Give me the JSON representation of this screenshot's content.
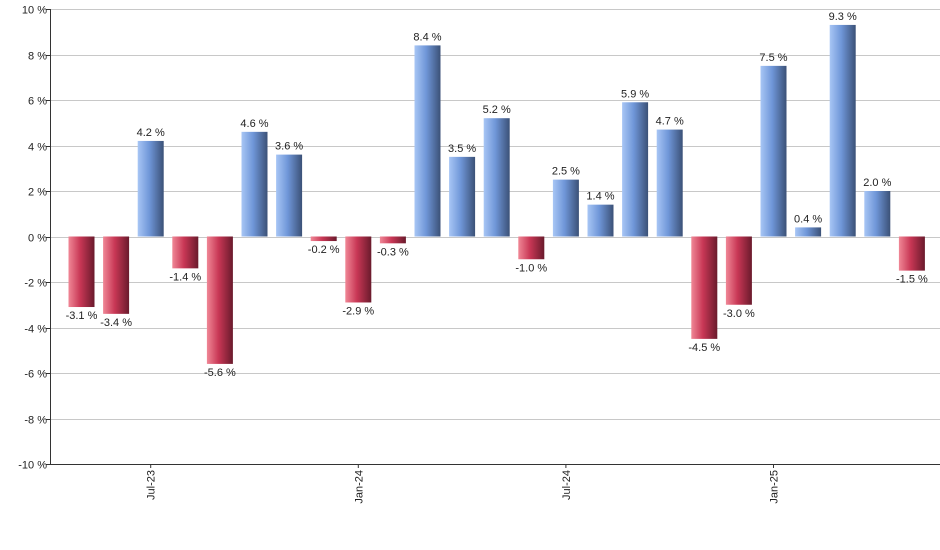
{
  "chart_data": {
    "type": "bar",
    "title": "",
    "xlabel": "",
    "ylabel": "",
    "ylim": [
      -10,
      10
    ],
    "y_ticks": [
      10,
      8,
      6,
      4,
      2,
      0,
      -2,
      -4,
      -6,
      -8,
      -10
    ],
    "y_tick_suffix": " %",
    "grid": true,
    "values": [
      -3.1,
      -3.4,
      4.2,
      -1.4,
      -5.6,
      4.6,
      3.6,
      -0.2,
      -2.9,
      -0.3,
      8.4,
      3.5,
      5.2,
      -1.0,
      2.5,
      1.4,
      5.9,
      4.7,
      -4.5,
      -3.0,
      7.5,
      0.4,
      9.3,
      2.0,
      -1.5
    ],
    "data_labels": [
      "-3.1 %",
      "-3.4 %",
      "4.2 %",
      "-1.4 %",
      "-5.6 %",
      "4.6 %",
      "3.6 %",
      "-0.2 %",
      "-2.9 %",
      "-0.3 %",
      "8.4 %",
      "3.5 %",
      "5.2 %",
      "-1.0 %",
      "2.5 %",
      "1.4 %",
      "5.9 %",
      "4.7 %",
      "-4.5 %",
      "-3.0 %",
      "7.5 %",
      "0.4 %",
      "9.3 %",
      "2.0 %",
      "-1.5 %"
    ],
    "x_tick_labels": [
      {
        "label": "Jul-23",
        "index": 2
      },
      {
        "label": "Jan-24",
        "index": 8
      },
      {
        "label": "Jul-24",
        "index": 14
      },
      {
        "label": "Jan-25",
        "index": 20
      }
    ],
    "colors": {
      "positive_light": "#a8c6f5",
      "positive_mid": "#6f96d8",
      "positive_dark": "#3b5177",
      "negative_light": "#f08796",
      "negative_mid": "#c83755",
      "negative_dark": "#6a1a2c",
      "grid": "#c8c8c8",
      "axis": "#333333"
    }
  }
}
